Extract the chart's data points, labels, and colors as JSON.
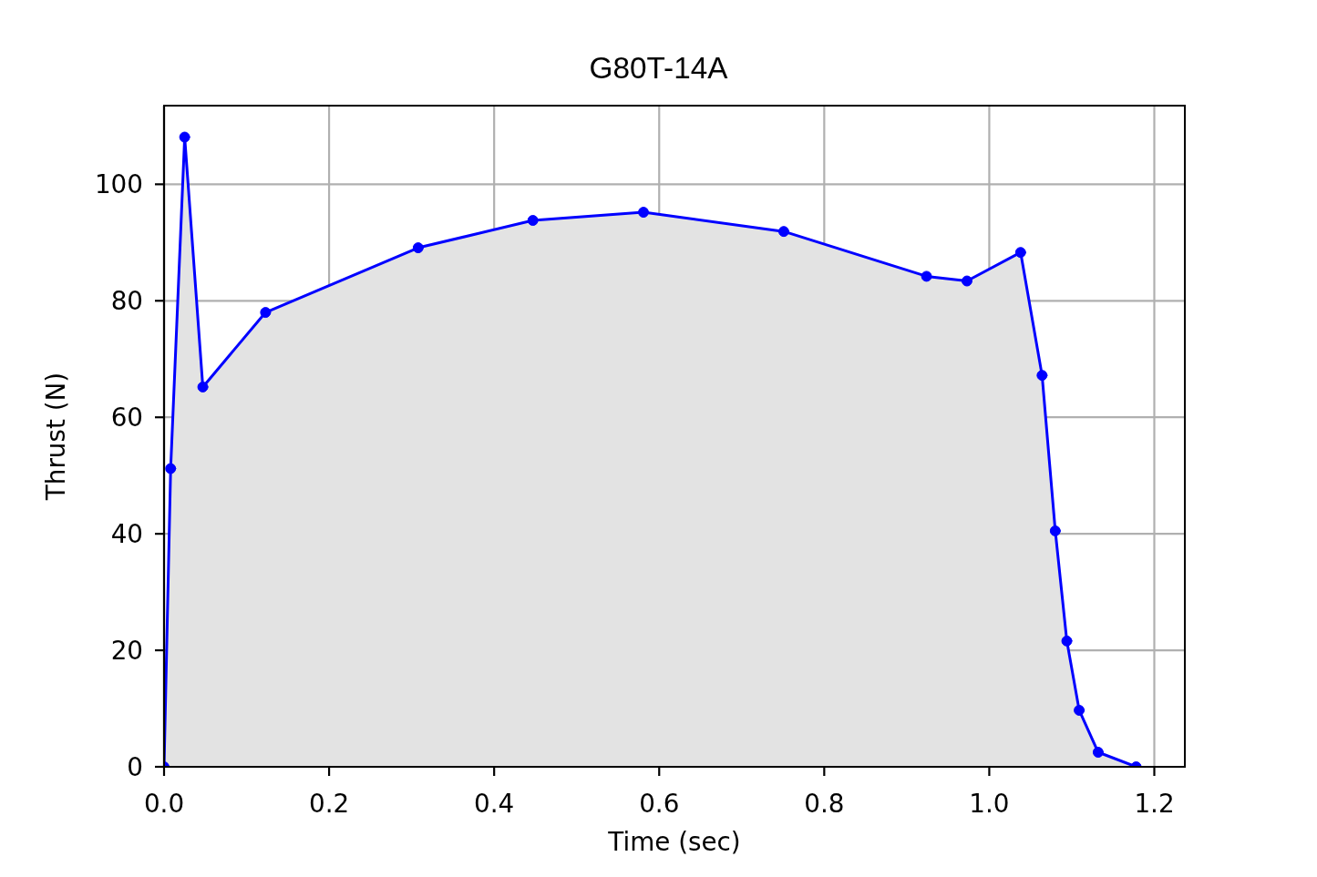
{
  "chart_data": {
    "type": "area",
    "title": "G80T-14A",
    "xlabel": "Time (sec)",
    "ylabel": "Thrust (N)",
    "x": [
      0,
      0.008,
      0.025,
      0.047,
      0.123,
      0.308,
      0.447,
      0.581,
      0.751,
      0.924,
      0.973,
      1.038,
      1.064,
      1.08,
      1.094,
      1.109,
      1.132,
      1.178
    ],
    "series": [
      {
        "color": "#0000ff",
        "values": [
          0,
          51.2,
          108.1,
          65.2,
          78.0,
          89.1,
          93.8,
          95.2,
          91.9,
          84.2,
          83.4,
          88.3,
          67.2,
          40.5,
          21.6,
          9.7,
          2.5,
          0
        ]
      }
    ],
    "xlim": [
      0,
      1.237
    ],
    "ylim": [
      0,
      113.5
    ],
    "xticks": [
      {
        "value": 0,
        "label": "0.0"
      },
      {
        "value": 0.2,
        "label": "0.2"
      },
      {
        "value": 0.4,
        "label": "0.4"
      },
      {
        "value": 0.6,
        "label": "0.6"
      },
      {
        "value": 0.8,
        "label": "0.8"
      },
      {
        "value": 1,
        "label": "1.0"
      },
      {
        "value": 1.2,
        "label": "1.2"
      }
    ],
    "yticks": [
      0,
      20,
      40,
      60,
      80,
      100
    ],
    "grid": true,
    "marker": "circle",
    "line_style": "solid"
  }
}
